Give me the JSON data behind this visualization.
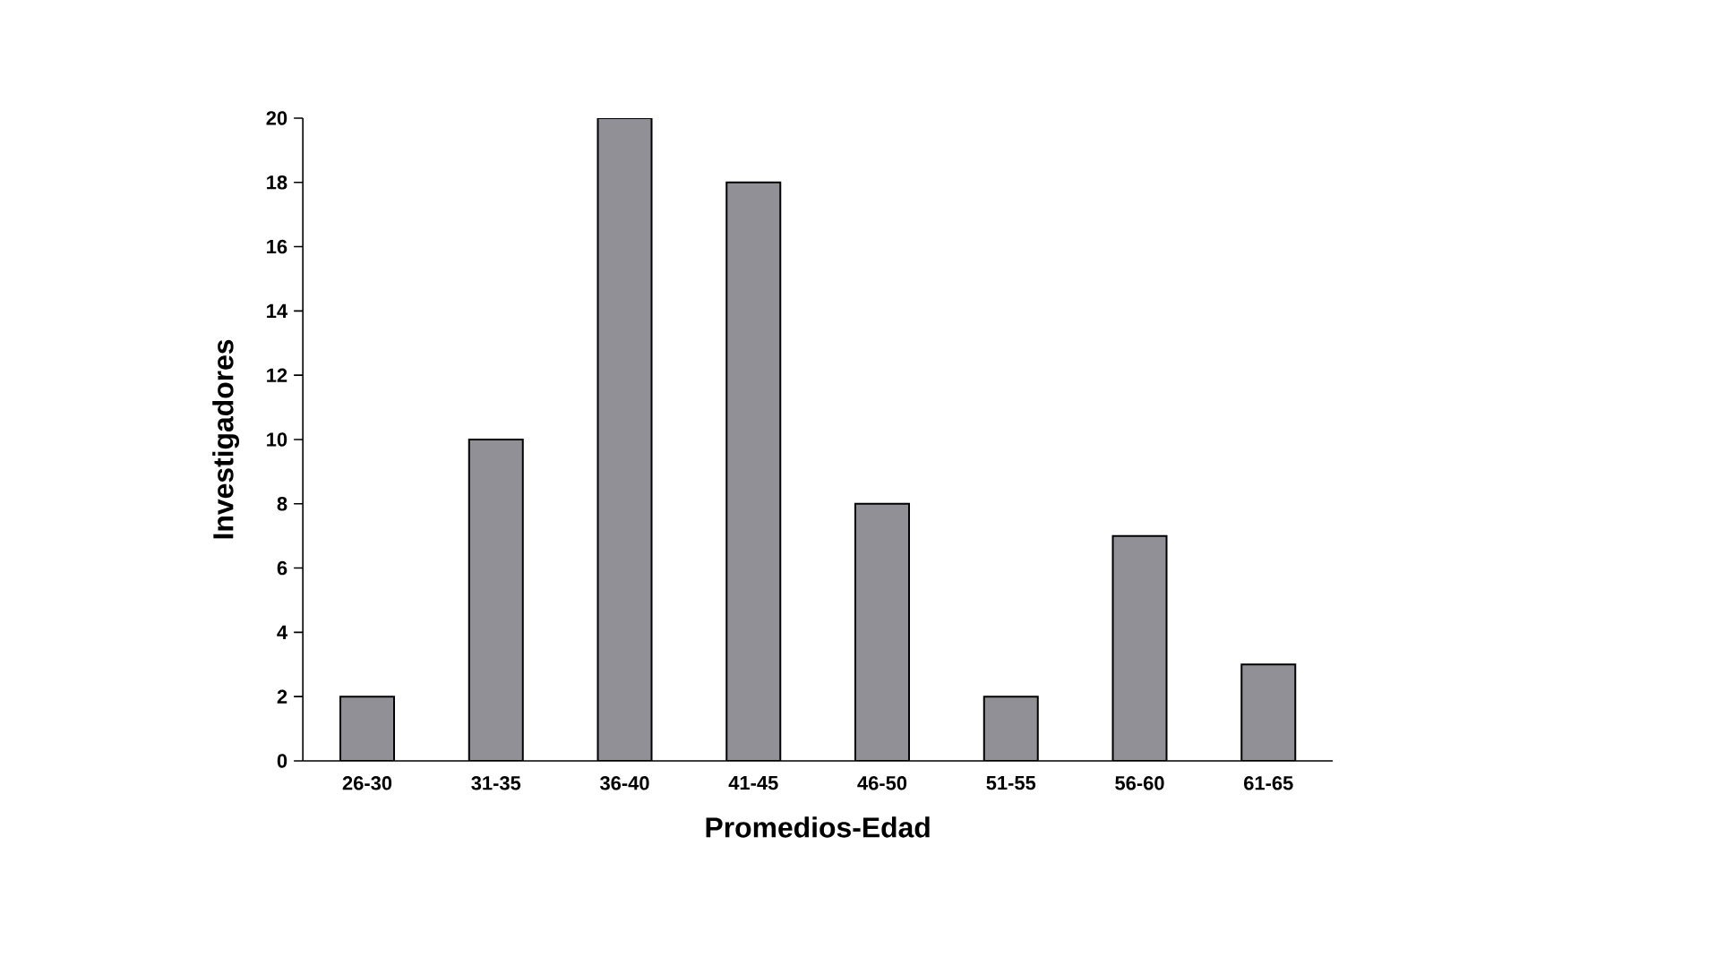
{
  "chart_data": {
    "type": "bar",
    "xlabel": "Promedios-Edad",
    "ylabel": "Investigadores",
    "categories": [
      "26-30",
      "31-35",
      "36-40",
      "41-45",
      "46-50",
      "51-55",
      "56-60",
      "61-65"
    ],
    "values": [
      2,
      10,
      20,
      18,
      8,
      2,
      7,
      3
    ],
    "color": "#909096",
    "ylim": [
      0,
      20
    ],
    "yticks": [
      0,
      2,
      4,
      6,
      8,
      10,
      12,
      14,
      16,
      18,
      20
    ],
    "grid": false
  }
}
